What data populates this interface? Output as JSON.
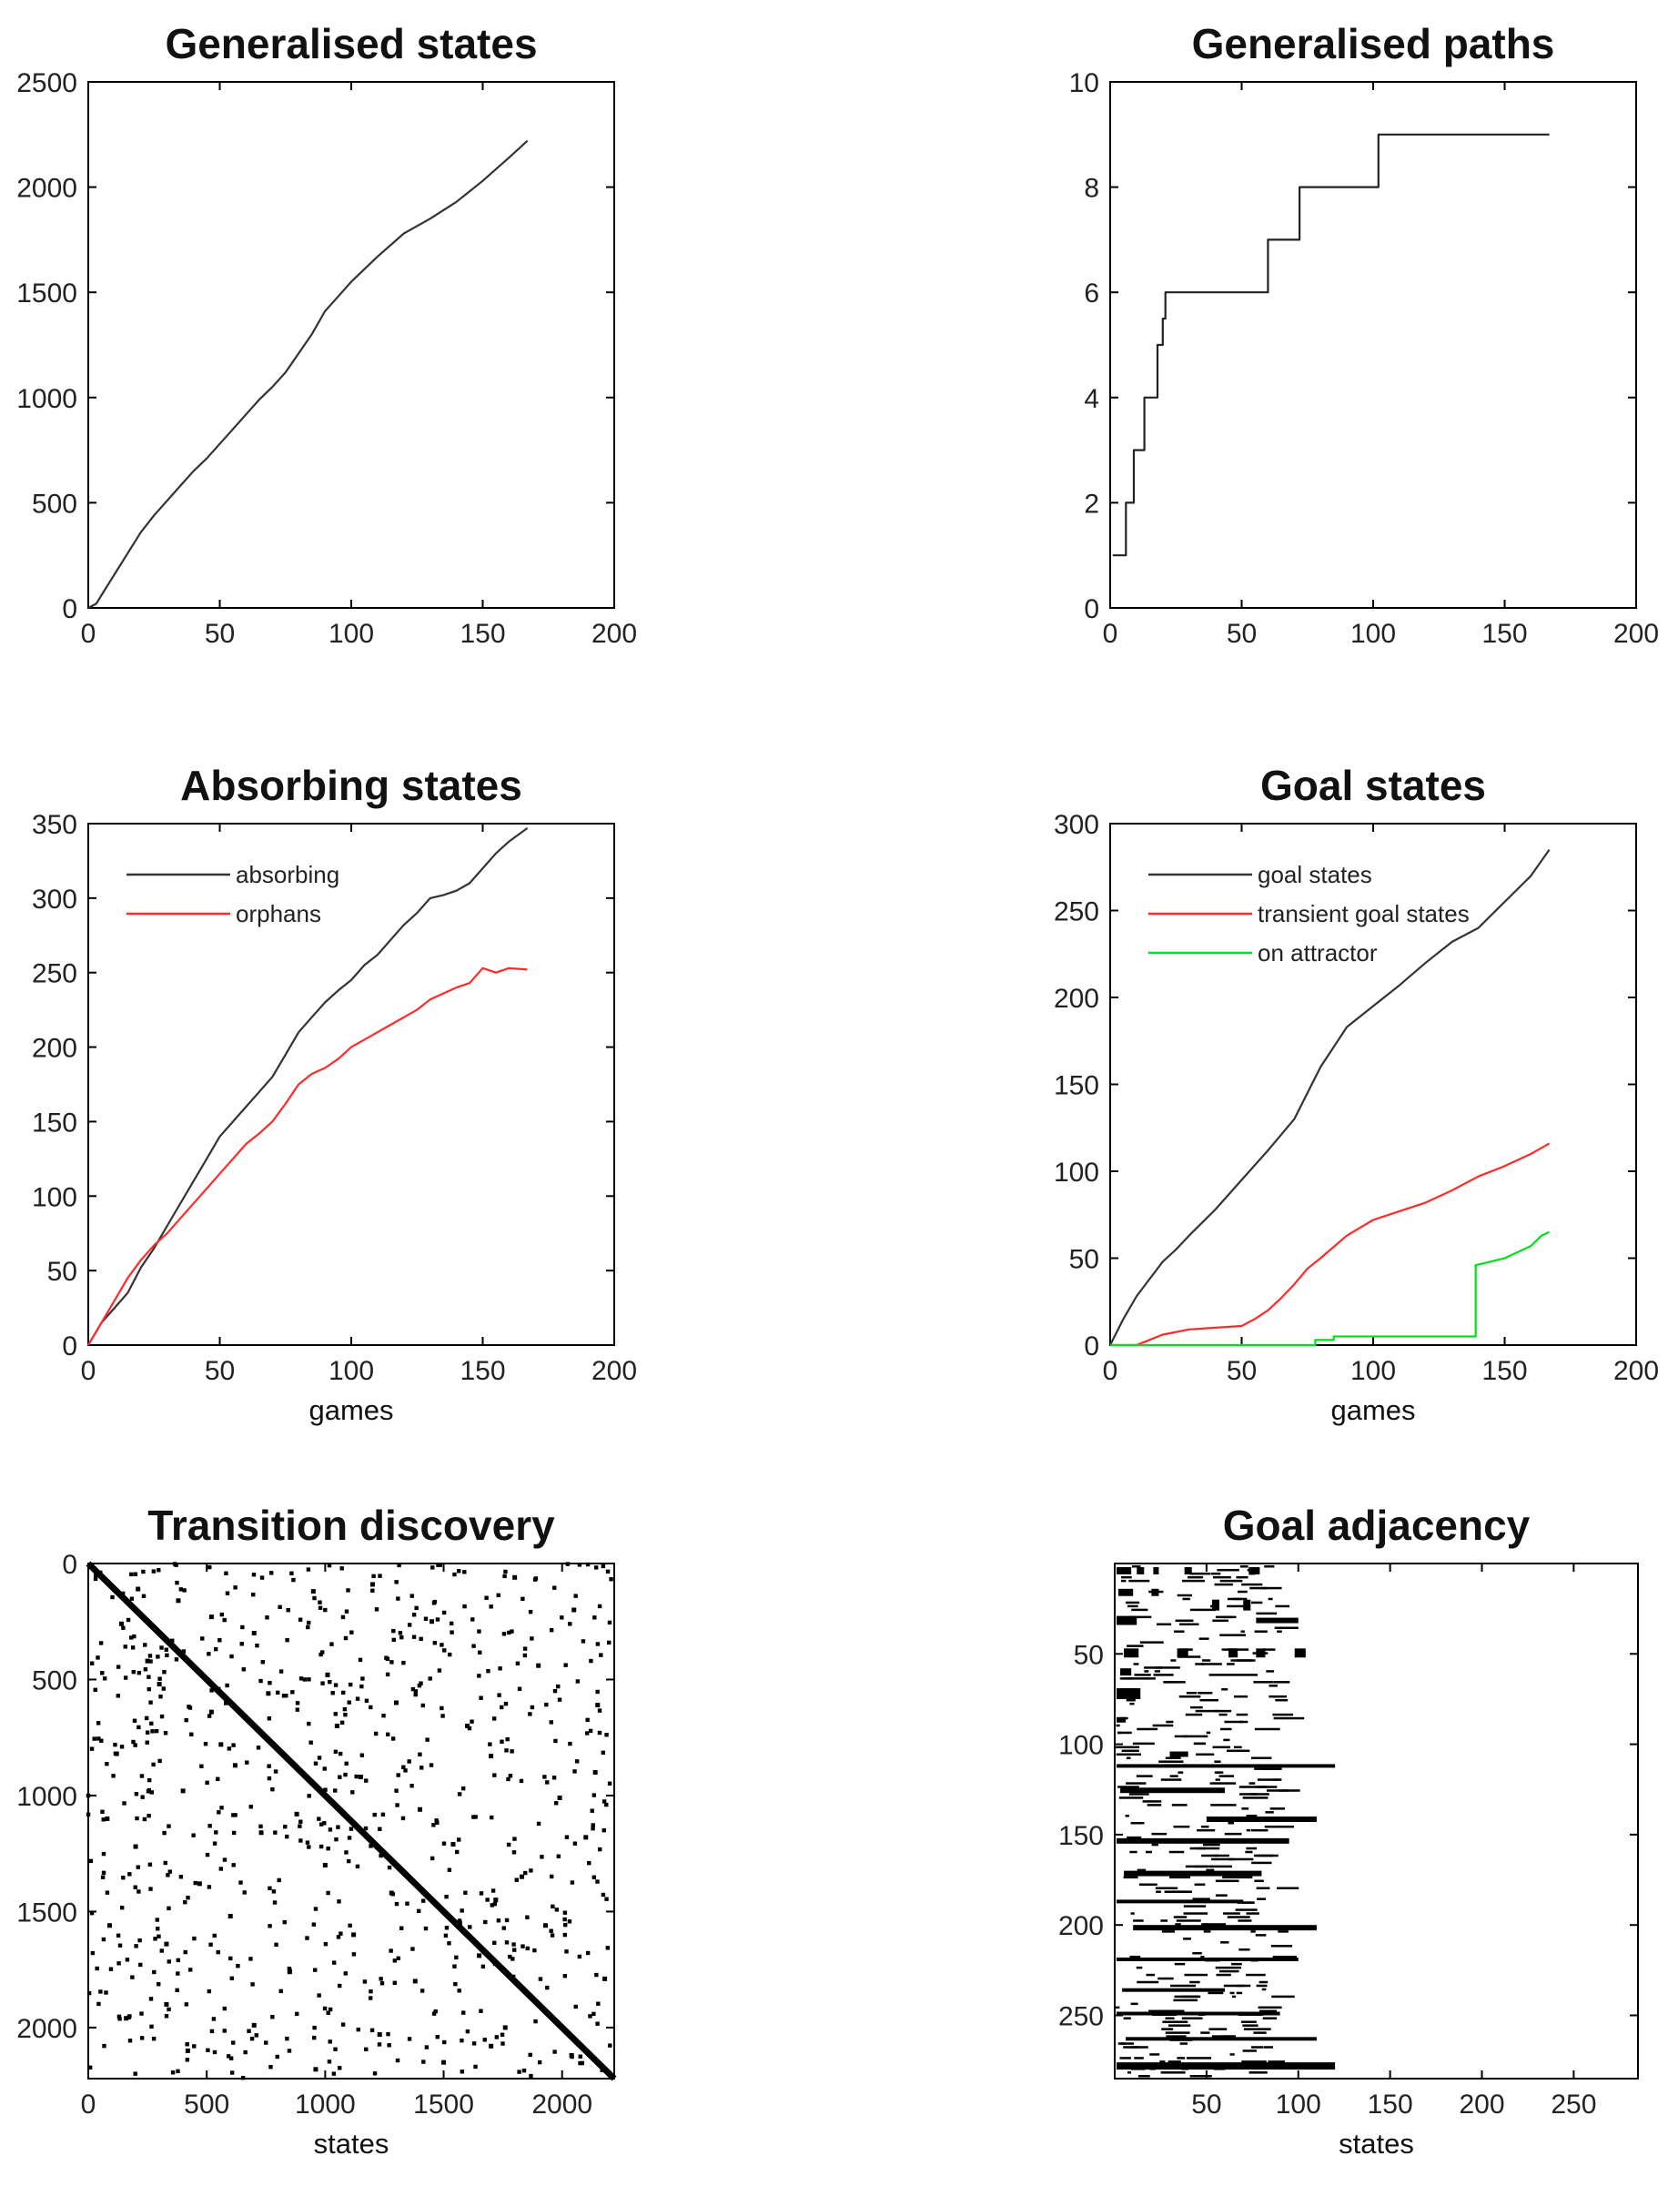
{
  "chart_data": [
    {
      "id": "gen_states",
      "type": "line",
      "title": "Generalised states",
      "xlabel": "",
      "ylabel": "",
      "xlim": [
        0,
        200
      ],
      "ylim": [
        0,
        2500
      ],
      "xticks": [
        0,
        50,
        100,
        150,
        200
      ],
      "yticks": [
        0,
        500,
        1000,
        1500,
        2000,
        2500
      ],
      "series": [
        {
          "name": "generalised states",
          "color": "#333333",
          "x": [
            0,
            3,
            6,
            10,
            15,
            20,
            25,
            30,
            35,
            40,
            45,
            50,
            55,
            60,
            65,
            70,
            75,
            80,
            85,
            90,
            95,
            100,
            110,
            120,
            130,
            140,
            150,
            160,
            167
          ],
          "y": [
            0,
            20,
            80,
            160,
            260,
            360,
            440,
            510,
            580,
            650,
            710,
            780,
            850,
            920,
            990,
            1050,
            1120,
            1210,
            1300,
            1410,
            1480,
            1550,
            1670,
            1780,
            1850,
            1930,
            2030,
            2140,
            2220
          ]
        }
      ]
    },
    {
      "id": "gen_paths",
      "type": "line",
      "title": "Generalised paths",
      "xlabel": "",
      "ylabel": "",
      "xlim": [
        0,
        200
      ],
      "ylim": [
        0,
        10
      ],
      "xticks": [
        0,
        50,
        100,
        150,
        200
      ],
      "yticks": [
        0,
        2,
        4,
        6,
        8,
        10
      ],
      "series": [
        {
          "name": "generalised paths",
          "color": "#222222",
          "x": [
            1,
            6,
            6,
            9,
            9,
            13,
            13,
            18,
            18,
            20,
            20,
            21,
            21,
            60,
            60,
            70,
            70,
            72,
            72,
            102,
            102,
            167
          ],
          "y": [
            1,
            1,
            2,
            2,
            3,
            3,
            4,
            4,
            5,
            5,
            5.5,
            5.5,
            6,
            6,
            7,
            7,
            7,
            7,
            8,
            8,
            9,
            9
          ]
        }
      ]
    },
    {
      "id": "absorbing",
      "type": "line",
      "title": "Absorbing states",
      "xlabel": "games",
      "ylabel": "",
      "xlim": [
        0,
        200
      ],
      "ylim": [
        0,
        350
      ],
      "xticks": [
        0,
        50,
        100,
        150,
        200
      ],
      "yticks": [
        0,
        50,
        100,
        150,
        200,
        250,
        300,
        350
      ],
      "legend": "top-left",
      "series": [
        {
          "name": "absorbing",
          "color": "#333333",
          "x": [
            0,
            5,
            10,
            15,
            20,
            25,
            30,
            35,
            40,
            45,
            50,
            55,
            60,
            65,
            70,
            75,
            80,
            85,
            90,
            95,
            100,
            105,
            110,
            115,
            120,
            125,
            130,
            135,
            140,
            145,
            150,
            155,
            160,
            167
          ],
          "y": [
            0,
            15,
            25,
            35,
            52,
            65,
            80,
            95,
            110,
            125,
            140,
            150,
            160,
            170,
            180,
            195,
            210,
            220,
            230,
            238,
            245,
            255,
            262,
            272,
            282,
            290,
            300,
            302,
            305,
            310,
            320,
            330,
            338,
            347
          ]
        },
        {
          "name": "orphans",
          "color": "#ff2a2a",
          "x": [
            0,
            5,
            10,
            15,
            20,
            25,
            30,
            35,
            40,
            45,
            50,
            55,
            60,
            65,
            70,
            75,
            80,
            85,
            90,
            95,
            100,
            105,
            110,
            115,
            120,
            125,
            130,
            135,
            140,
            145,
            150,
            155,
            160,
            167
          ],
          "y": [
            0,
            15,
            30,
            45,
            57,
            67,
            75,
            85,
            95,
            105,
            115,
            125,
            135,
            142,
            150,
            162,
            175,
            182,
            186,
            192,
            200,
            205,
            210,
            215,
            220,
            225,
            232,
            236,
            240,
            243,
            253,
            250,
            253,
            252
          ]
        }
      ]
    },
    {
      "id": "goal",
      "type": "line",
      "title": "Goal states",
      "xlabel": "games",
      "ylabel": "",
      "xlim": [
        0,
        200
      ],
      "ylim": [
        0,
        300
      ],
      "xticks": [
        0,
        50,
        100,
        150,
        200
      ],
      "yticks": [
        0,
        50,
        100,
        150,
        200,
        250,
        300
      ],
      "legend": "top-left",
      "series": [
        {
          "name": "goal states",
          "color": "#333333",
          "x": [
            0,
            5,
            10,
            15,
            20,
            25,
            30,
            40,
            50,
            60,
            70,
            80,
            90,
            100,
            110,
            120,
            130,
            140,
            150,
            160,
            167
          ],
          "y": [
            0,
            15,
            28,
            38,
            48,
            55,
            63,
            78,
            95,
            112,
            130,
            160,
            183,
            195,
            207,
            220,
            232,
            240,
            255,
            270,
            285
          ]
        },
        {
          "name": "transient goal states",
          "color": "#ff2a2a",
          "x": [
            0,
            10,
            15,
            20,
            30,
            40,
            50,
            55,
            60,
            65,
            70,
            75,
            80,
            90,
            100,
            110,
            120,
            130,
            140,
            150,
            160,
            167
          ],
          "y": [
            0,
            0,
            3,
            6,
            9,
            10,
            11,
            15,
            20,
            27,
            35,
            44,
            50,
            63,
            72,
            77,
            82,
            89,
            97,
            103,
            110,
            116
          ]
        },
        {
          "name": "on attractor",
          "color": "#00e01a",
          "x": [
            0,
            78,
            78,
            85,
            85,
            139,
            139,
            142,
            150,
            160,
            164,
            167
          ],
          "y": [
            0,
            0,
            3,
            3,
            5,
            5,
            46,
            47,
            50,
            57,
            63,
            65
          ]
        }
      ]
    },
    {
      "id": "transitions",
      "type": "scatter",
      "title": "Transition discovery",
      "xlabel": "states",
      "ylabel": "",
      "xlim": [
        0,
        2220
      ],
      "ylim": [
        0,
        2220
      ],
      "xticks": [
        0,
        500,
        1000,
        1500,
        2000
      ],
      "yticks": [
        0,
        500,
        1000,
        1500,
        2000
      ],
      "y_reversed": true,
      "diagonal": [
        [
          0,
          0
        ],
        [
          2220,
          2220
        ]
      ],
      "points": [
        [
          50,
          40
        ],
        [
          210,
          110
        ],
        [
          520,
          230
        ],
        [
          140,
          260
        ],
        [
          380,
          160
        ],
        [
          700,
          300
        ],
        [
          950,
          120
        ],
        [
          1200,
          90
        ],
        [
          1450,
          250
        ],
        [
          1800,
          60
        ],
        [
          2050,
          200
        ],
        [
          300,
          520
        ],
        [
          520,
          640
        ],
        [
          760,
          560
        ],
        [
          1010,
          480
        ],
        [
          1300,
          600
        ],
        [
          1600,
          700
        ],
        [
          1900,
          440
        ],
        [
          2150,
          610
        ],
        [
          120,
          820
        ],
        [
          400,
          980
        ],
        [
          620,
          870
        ],
        [
          880,
          1080
        ],
        [
          1150,
          920
        ],
        [
          1400,
          1060
        ],
        [
          1700,
          830
        ],
        [
          1990,
          1010
        ],
        [
          200,
          1220
        ],
        [
          470,
          1380
        ],
        [
          730,
          1160
        ],
        [
          1000,
          1300
        ],
        [
          1280,
          1420
        ],
        [
          1540,
          1210
        ],
        [
          1830,
          1350
        ],
        [
          2100,
          1180
        ],
        [
          90,
          1560
        ],
        [
          330,
          1640
        ],
        [
          600,
          1520
        ],
        [
          850,
          1760
        ],
        [
          1120,
          1600
        ],
        [
          1380,
          1800
        ],
        [
          1650,
          1690
        ],
        [
          1930,
          1560
        ],
        [
          2180,
          1790
        ],
        [
          160,
          1960
        ],
        [
          420,
          2100
        ],
        [
          700,
          1990
        ],
        [
          960,
          2180
        ],
        [
          1230,
          2030
        ],
        [
          1500,
          2150
        ],
        [
          1760,
          2000
        ],
        [
          2040,
          2120
        ],
        [
          250,
          420
        ],
        [
          560,
          780
        ],
        [
          1050,
          700
        ],
        [
          1720,
          1450
        ],
        [
          80,
          1100
        ],
        [
          330,
          1900
        ],
        [
          1700,
          2080
        ],
        [
          2140,
          900
        ]
      ]
    },
    {
      "id": "adjacency",
      "type": "heatmap",
      "title": "Goal adjacency",
      "xlabel": "states",
      "ylabel": "",
      "xlim": [
        0,
        285
      ],
      "ylim": [
        0,
        285
      ],
      "xticks": [
        50,
        100,
        150,
        200,
        250
      ],
      "yticks": [
        50,
        100,
        150,
        200,
        250
      ],
      "y_reversed": true,
      "blocks": [
        [
          1,
          9,
          2,
          6
        ],
        [
          12,
          16,
          2,
          6
        ],
        [
          21,
          24,
          2,
          6
        ],
        [
          38,
          42,
          2,
          6
        ],
        [
          73,
          79,
          2,
          6
        ],
        [
          2,
          10,
          14,
          18
        ],
        [
          20,
          24,
          14,
          18
        ],
        [
          53,
          57,
          20,
          26
        ],
        [
          70,
          74,
          20,
          26
        ],
        [
          1,
          12,
          29,
          34
        ],
        [
          77,
          100,
          30,
          33
        ],
        [
          5,
          13,
          47,
          52
        ],
        [
          34,
          40,
          47,
          52
        ],
        [
          62,
          67,
          47,
          52
        ],
        [
          77,
          82,
          47,
          52
        ],
        [
          98,
          104,
          47,
          52
        ],
        [
          3,
          9,
          58,
          62
        ],
        [
          1,
          14,
          69,
          75
        ],
        [
          1,
          6,
          85,
          88
        ],
        [
          30,
          40,
          104,
          107
        ],
        [
          1,
          120,
          111,
          113
        ],
        [
          3,
          60,
          124,
          127
        ],
        [
          50,
          110,
          140,
          143
        ],
        [
          1,
          95,
          152,
          155
        ],
        [
          5,
          80,
          170,
          173
        ],
        [
          1,
          70,
          186,
          188
        ],
        [
          10,
          110,
          200,
          203
        ],
        [
          1,
          100,
          218,
          220
        ],
        [
          4,
          60,
          235,
          237
        ],
        [
          1,
          90,
          248,
          250
        ],
        [
          6,
          110,
          262,
          264
        ],
        [
          1,
          120,
          276,
          280
        ]
      ]
    }
  ]
}
